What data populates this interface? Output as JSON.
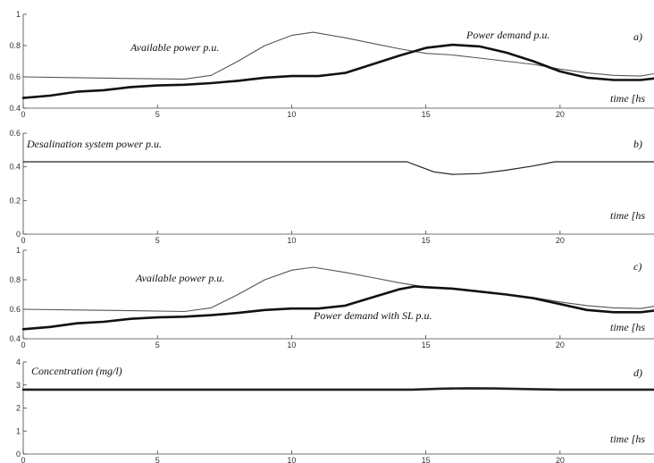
{
  "chart_data": [
    {
      "type": "line",
      "panel_label": "a)",
      "xlabel": "time [hs",
      "xlim": [
        0,
        23.5
      ],
      "ylim": [
        0.4,
        1.0
      ],
      "xticks": [
        0,
        5,
        10,
        15,
        20
      ],
      "yticks": [
        0.4,
        0.6,
        0.8,
        1
      ],
      "ytick_labels": [
        "0.4",
        "0.6",
        "0.8",
        "1"
      ],
      "annotations": [
        "Available power p.u.",
        "Power demand p.u."
      ],
      "series": [
        {
          "name": "Available power p.u.",
          "x": [
            0,
            2,
            4,
            6,
            7,
            8,
            9,
            10,
            10.8,
            12,
            13,
            14,
            15,
            16,
            17,
            18,
            19,
            20,
            21,
            22,
            23,
            23.5
          ],
          "values": [
            0.6,
            0.595,
            0.59,
            0.585,
            0.61,
            0.7,
            0.8,
            0.865,
            0.885,
            0.85,
            0.815,
            0.78,
            0.75,
            0.74,
            0.72,
            0.7,
            0.68,
            0.65,
            0.625,
            0.61,
            0.605,
            0.62
          ]
        },
        {
          "name": "Power demand p.u.",
          "x": [
            0,
            1,
            2,
            3,
            4,
            5,
            6,
            7,
            8,
            9,
            10,
            11,
            12,
            13,
            14,
            15,
            16,
            17,
            18,
            19,
            20,
            21,
            22,
            23,
            23.5
          ],
          "values": [
            0.465,
            0.48,
            0.505,
            0.515,
            0.535,
            0.545,
            0.55,
            0.56,
            0.575,
            0.595,
            0.605,
            0.605,
            0.625,
            0.68,
            0.735,
            0.785,
            0.805,
            0.795,
            0.755,
            0.7,
            0.635,
            0.595,
            0.58,
            0.58,
            0.59
          ]
        }
      ]
    },
    {
      "type": "line",
      "panel_label": "b)",
      "xlabel": "time [hs",
      "xlim": [
        0,
        23.5
      ],
      "ylim": [
        0,
        0.6
      ],
      "xticks": [
        0,
        5,
        10,
        15,
        20
      ],
      "yticks": [
        0,
        0.2,
        0.4,
        0.6
      ],
      "ytick_labels": [
        "0",
        "0.2",
        "0.4",
        "0.6"
      ],
      "annotations": [
        "Desalination system power p.u."
      ],
      "series": [
        {
          "name": "Desalination system power p.u.",
          "x": [
            0,
            14.3,
            14.8,
            15.3,
            16,
            17,
            18,
            19,
            19.8,
            23.5
          ],
          "values": [
            0.43,
            0.43,
            0.4,
            0.37,
            0.355,
            0.36,
            0.38,
            0.405,
            0.43,
            0.43
          ]
        }
      ]
    },
    {
      "type": "line",
      "panel_label": "c)",
      "xlabel": "time [hs",
      "xlim": [
        0,
        23.5
      ],
      "ylim": [
        0.4,
        1.0
      ],
      "xticks": [
        0,
        5,
        10,
        15,
        20
      ],
      "yticks": [
        0.4,
        0.6,
        0.8,
        1
      ],
      "ytick_labels": [
        "0.4",
        "0.6",
        "0.8",
        "1"
      ],
      "annotations": [
        "Available power p.u.",
        "Power demand with SL p.u."
      ],
      "series": [
        {
          "name": "Available power p.u.",
          "x": [
            0,
            2,
            4,
            6,
            7,
            8,
            9,
            10,
            10.8,
            12,
            13,
            14,
            15,
            16,
            17,
            18,
            19,
            20,
            21,
            22,
            23,
            23.5
          ],
          "values": [
            0.6,
            0.595,
            0.59,
            0.585,
            0.61,
            0.7,
            0.8,
            0.865,
            0.885,
            0.85,
            0.815,
            0.78,
            0.75,
            0.74,
            0.72,
            0.7,
            0.68,
            0.65,
            0.625,
            0.61,
            0.605,
            0.62
          ]
        },
        {
          "name": "Power demand with SL p.u.",
          "x": [
            0,
            1,
            2,
            3,
            4,
            5,
            6,
            7,
            8,
            9,
            10,
            11,
            12,
            13,
            14,
            14.6,
            15,
            16,
            17,
            18,
            19,
            20,
            21,
            22,
            23,
            23.5
          ],
          "values": [
            0.465,
            0.48,
            0.505,
            0.515,
            0.535,
            0.545,
            0.55,
            0.56,
            0.575,
            0.595,
            0.605,
            0.605,
            0.625,
            0.68,
            0.735,
            0.755,
            0.75,
            0.74,
            0.72,
            0.7,
            0.675,
            0.635,
            0.595,
            0.58,
            0.58,
            0.59
          ]
        }
      ]
    },
    {
      "type": "line",
      "panel_label": "d)",
      "xlabel": "time [hs",
      "xlim": [
        0,
        23.5
      ],
      "ylim": [
        0,
        4
      ],
      "xticks": [
        0,
        5,
        10,
        15,
        20
      ],
      "yticks": [
        0,
        1,
        2,
        3,
        4
      ],
      "ytick_labels": [
        "0",
        "1",
        "2",
        "3",
        "4"
      ],
      "annotations": [
        "Concentration (mg/l)"
      ],
      "series": [
        {
          "name": "Concentration (mg/l)",
          "x": [
            0,
            14.5,
            15.5,
            16.5,
            17.5,
            19,
            20,
            23.5
          ],
          "values": [
            2.8,
            2.8,
            2.84,
            2.86,
            2.85,
            2.82,
            2.8,
            2.8
          ]
        }
      ]
    }
  ]
}
